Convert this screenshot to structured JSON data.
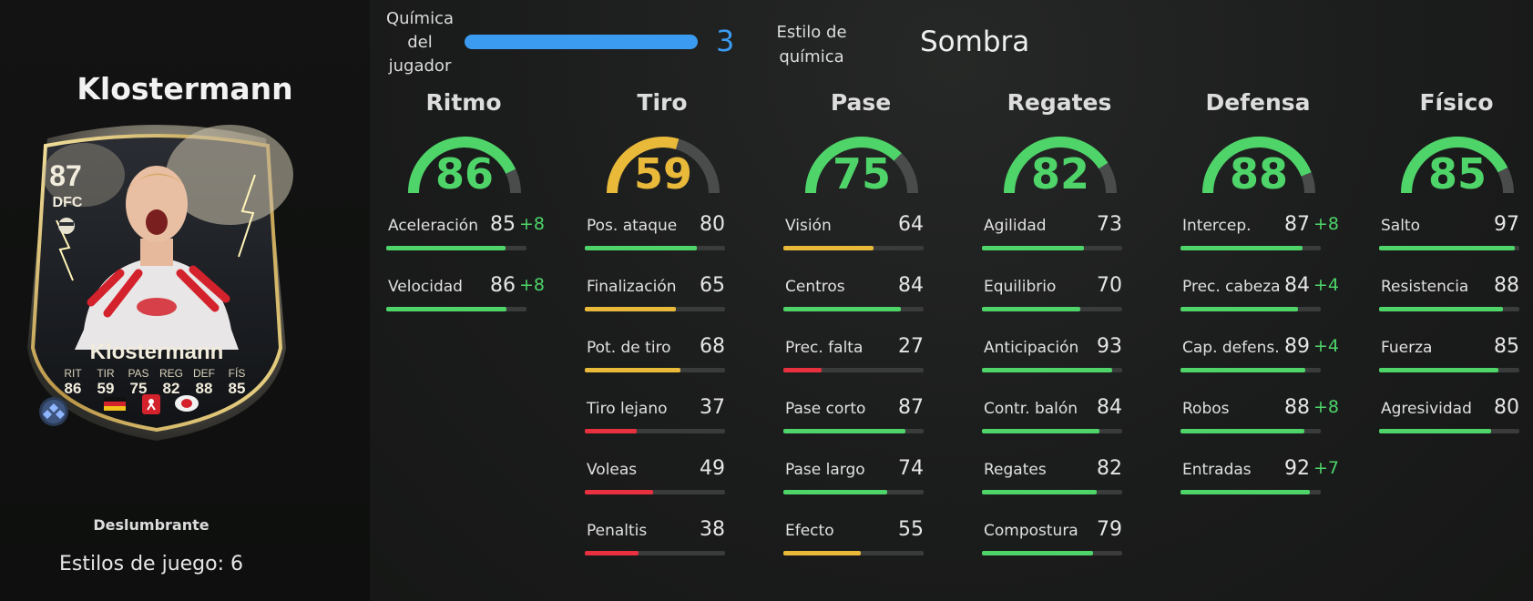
{
  "player": {
    "name": "Klostermann",
    "card": {
      "rating": "87",
      "position": "DFC",
      "name": "Klostermann",
      "stat_labels": [
        "RIT",
        "TIR",
        "PAS",
        "REG",
        "DEF",
        "FÍS"
      ],
      "stat_values": [
        "86",
        "59",
        "75",
        "82",
        "88",
        "85"
      ]
    },
    "chem_style_title": "Deslumbrante",
    "playstyles": "Estilos de juego: 6"
  },
  "chemistry": {
    "label": "Química del jugador",
    "value": "3",
    "fill": 1.0,
    "style_label": "Estilo de química",
    "style_value": "Sombra"
  },
  "colors": {
    "green": "#4ed469",
    "yellow": "#e9b93a",
    "red": "#e8303f",
    "blue": "#3b9bf0"
  },
  "categories": [
    {
      "title": "Ritmo",
      "value": "86",
      "stats": [
        {
          "label": "Aceleración",
          "value": "85",
          "boost": "+8"
        },
        {
          "label": "Velocidad",
          "value": "86",
          "boost": "+8"
        }
      ]
    },
    {
      "title": "Tiro",
      "value": "59",
      "stats": [
        {
          "label": "Pos. ataque",
          "value": "80"
        },
        {
          "label": "Finalización",
          "value": "65"
        },
        {
          "label": "Pot. de tiro",
          "value": "68"
        },
        {
          "label": "Tiro lejano",
          "value": "37"
        },
        {
          "label": "Voleas",
          "value": "49"
        },
        {
          "label": "Penaltis",
          "value": "38"
        }
      ]
    },
    {
      "title": "Pase",
      "value": "75",
      "stats": [
        {
          "label": "Visión",
          "value": "64"
        },
        {
          "label": "Centros",
          "value": "84"
        },
        {
          "label": "Prec. falta",
          "value": "27"
        },
        {
          "label": "Pase corto",
          "value": "87"
        },
        {
          "label": "Pase largo",
          "value": "74"
        },
        {
          "label": "Efecto",
          "value": "55"
        }
      ]
    },
    {
      "title": "Regates",
      "value": "82",
      "stats": [
        {
          "label": "Agilidad",
          "value": "73"
        },
        {
          "label": "Equilibrio",
          "value": "70"
        },
        {
          "label": "Anticipación",
          "value": "93"
        },
        {
          "label": "Contr. balón",
          "value": "84"
        },
        {
          "label": "Regates",
          "value": "82"
        },
        {
          "label": "Compostura",
          "value": "79"
        }
      ]
    },
    {
      "title": "Defensa",
      "value": "88",
      "stats": [
        {
          "label": "Intercep.",
          "value": "87",
          "boost": "+8"
        },
        {
          "label": "Prec. cabeza",
          "value": "84",
          "boost": "+4"
        },
        {
          "label": "Cap. defens.",
          "value": "89",
          "boost": "+4"
        },
        {
          "label": "Robos",
          "value": "88",
          "boost": "+8"
        },
        {
          "label": "Entradas",
          "value": "92",
          "boost": "+7"
        }
      ]
    },
    {
      "title": "Físico",
      "value": "85",
      "stats": [
        {
          "label": "Salto",
          "value": "97"
        },
        {
          "label": "Resistencia",
          "value": "88"
        },
        {
          "label": "Fuerza",
          "value": "85"
        },
        {
          "label": "Agresividad",
          "value": "80"
        }
      ]
    }
  ]
}
